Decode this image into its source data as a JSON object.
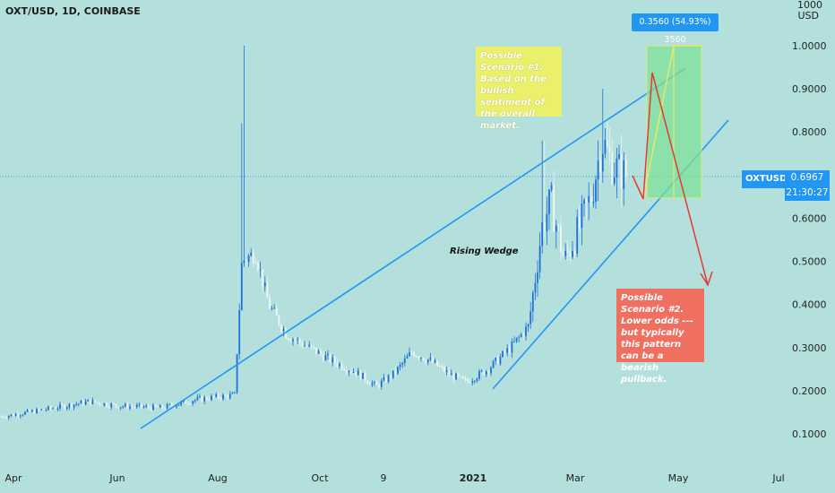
{
  "symbol": "OXT/USD, 1D, COINBASE",
  "currency_label": "1000 USD",
  "measure_label": "0.3560 (54.93%) 3560",
  "pattern_label": "Rising Wedge",
  "scenario1": "Possible Scenario #1. Based on the bullish sentiment of the overall market.",
  "scenario2": "Possible Scenario #2. Lower odds --- but typically this pattern can be a bearish pullback.",
  "ticker": {
    "name": "OXTUSD",
    "price": "0.6967",
    "countdown": "21:30:27"
  },
  "colors": {
    "background": "#b3e0dc",
    "candle": "#1e6fd9",
    "trendline": "#2196f3",
    "target_box": "#7fe09a",
    "bull_path": "#f0e85c",
    "bear_path": "#e53935"
  },
  "chart_data": {
    "type": "candlestick",
    "title": "OXT/USD, 1D, COINBASE",
    "x_ticks": [
      "Apr",
      "Jun",
      "Aug",
      "Oct",
      "9",
      "2021",
      "Mar",
      "May",
      "Jul"
    ],
    "y_ticks": [
      "0.1000",
      "0.2000",
      "0.3000",
      "0.4000",
      "0.5000",
      "0.6000",
      "0.7000",
      "0.8000",
      "0.9000",
      "1.0000"
    ],
    "ylim": [
      0.05,
      1.07
    ],
    "current_price": 0.6967,
    "approx_closes": [
      [
        "Apr",
        0.14
      ],
      [
        "May",
        0.17
      ],
      [
        "Jun",
        0.16
      ],
      [
        "Jul",
        0.18
      ],
      [
        "Aug",
        0.19
      ],
      [
        "Aug",
        0.52
      ],
      [
        "Sep",
        0.34
      ],
      [
        "Oct",
        0.28
      ],
      [
        "Nov",
        0.22
      ],
      [
        "Dec",
        0.28
      ],
      [
        "2021",
        0.24
      ],
      [
        "Feb",
        0.62
      ],
      [
        "Mar",
        0.66
      ],
      [
        "Mar",
        0.78
      ],
      [
        "Apr",
        0.7
      ]
    ],
    "annotations": [
      "Rising Wedge",
      "0.3560 (54.93%) 3560"
    ]
  }
}
